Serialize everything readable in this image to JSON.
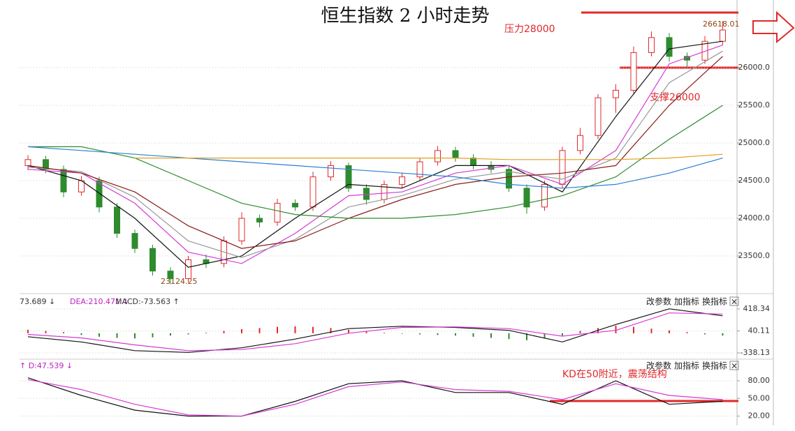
{
  "title": "恒生指数 2 小时走势",
  "annotations": {
    "resistance": "压力28000",
    "support": "支撑26000",
    "kd_note": "KD在50附近，震荡结构"
  },
  "buttons": [
    "改参数",
    "加指标",
    "换指标",
    "×"
  ],
  "chart_data": [
    {
      "type": "candlestick",
      "open": [
        24700,
        24780,
        24650,
        24350,
        24500,
        24150,
        23800,
        23600,
        23300,
        23200,
        23450,
        23400,
        23700,
        24000,
        23950,
        24200,
        24150,
        24550,
        24700,
        24400,
        24250,
        24450,
        24550,
        24750,
        24900,
        24800,
        24700,
        24650,
        24400,
        24150,
        24450,
        24900,
        25100,
        25600,
        25700,
        26200,
        26400,
        26150,
        26100,
        26350
      ],
      "high": [
        24840,
        24830,
        24700,
        24560,
        24550,
        24200,
        23850,
        23650,
        23350,
        23500,
        23520,
        23760,
        24080,
        24050,
        24260,
        24250,
        24620,
        24760,
        24740,
        24450,
        24500,
        24600,
        24800,
        24960,
        24950,
        24850,
        24760,
        24700,
        24450,
        24500,
        24950,
        25200,
        25650,
        25780,
        26280,
        26480,
        26460,
        26200,
        26420,
        26618.01
      ],
      "low": [
        24640,
        24600,
        24280,
        24300,
        24080,
        23740,
        23540,
        23240,
        23124.25,
        23150,
        23340,
        23350,
        23650,
        23880,
        23900,
        24100,
        24100,
        24500,
        24350,
        24180,
        24200,
        24400,
        24500,
        24700,
        24750,
        24650,
        24600,
        24350,
        24060,
        24100,
        24400,
        24850,
        25050,
        25400,
        25650,
        26150,
        26080,
        26000,
        26050,
        26300
      ],
      "close": [
        24780,
        24650,
        24350,
        24500,
        24150,
        23800,
        23600,
        23300,
        23200,
        23450,
        23400,
        23700,
        24000,
        23950,
        24200,
        24150,
        24550,
        24700,
        24400,
        24250,
        24450,
        24550,
        24750,
        24900,
        24800,
        24700,
        24650,
        24400,
        24150,
        24450,
        24900,
        25100,
        25600,
        25700,
        26200,
        26400,
        26150,
        26100,
        26350,
        26500
      ],
      "up_color": "#e0292b",
      "down_color": "#2e8b2e",
      "ma_x": [
        0,
        3,
        6,
        9,
        12,
        15,
        18,
        21,
        24,
        27,
        30,
        33,
        36,
        39
      ],
      "ma": [
        {
          "color": "#111111",
          "values": [
            24700,
            24500,
            24000,
            23350,
            23500,
            24000,
            24450,
            24400,
            24700,
            24700,
            24350,
            25350,
            26250,
            26350
          ]
        },
        {
          "color": "#d63ad6",
          "values": [
            24650,
            24600,
            24200,
            23550,
            23400,
            23800,
            24300,
            24350,
            24600,
            24700,
            24450,
            24900,
            26050,
            26300
          ]
        },
        {
          "color": "#999999",
          "values": [
            24680,
            24620,
            24280,
            23700,
            23480,
            23720,
            24150,
            24300,
            24520,
            24620,
            24520,
            24800,
            25800,
            26220
          ]
        },
        {
          "color": "#8b1a1a",
          "values": [
            24700,
            24600,
            24350,
            23900,
            23600,
            23700,
            24000,
            24250,
            24450,
            24550,
            24600,
            24700,
            25500,
            26150
          ]
        },
        {
          "color": "#2e8b2e",
          "values": [
            24950,
            24950,
            24800,
            24500,
            24200,
            24050,
            24000,
            24000,
            24050,
            24150,
            24300,
            24550,
            25050,
            25500
          ]
        },
        {
          "color": "#2a7fd4",
          "values": [
            24950,
            24900,
            24850,
            24800,
            24750,
            24700,
            24650,
            24600,
            24550,
            24450,
            24400,
            24450,
            24600,
            24800
          ]
        },
        {
          "color": "#e0a020",
          "values": [
            null,
            null,
            24800,
            24800,
            24800,
            24800,
            24800,
            24800,
            24800,
            24780,
            24780,
            24780,
            24800,
            24850
          ]
        }
      ],
      "ylim": [
        23056,
        26852
      ],
      "yticks": [
        {
          "value": 23500,
          "label": "23500.0"
        },
        {
          "value": 24000,
          "label": "24000.0"
        },
        {
          "value": 24500,
          "label": "24500.0"
        },
        {
          "value": 25000,
          "label": "25000.0"
        },
        {
          "value": 25500,
          "label": "25500.0"
        },
        {
          "value": 26000,
          "label": "26000.0"
        }
      ]
    },
    {
      "type": "macd",
      "header": [
        "73.689 ↓",
        "DEA:210.471 ↓",
        "MACD:-73.563 ↑"
      ],
      "hist": [
        60,
        40,
        20,
        -30,
        -60,
        -80,
        -90,
        -70,
        -40,
        -20,
        10,
        40,
        70,
        90,
        110,
        120,
        110,
        90,
        60,
        30,
        10,
        -10,
        -20,
        -30,
        -40,
        -60,
        -80,
        -100,
        -120,
        -90,
        -40,
        40,
        90,
        130,
        110,
        80,
        50,
        20,
        -20,
        -40
      ],
      "x": [
        0,
        3,
        6,
        9,
        12,
        15,
        18,
        21,
        24,
        27,
        30,
        33,
        36,
        39
      ],
      "series": [
        {
          "color": "#111111",
          "values": [
            -60,
            -150,
            -300,
            -330,
            -250,
            -100,
            80,
            120,
            100,
            50,
            -150,
            150,
            420,
            300
          ]
        },
        {
          "color": "#d63ad6",
          "values": [
            -20,
            -80,
            -200,
            -300,
            -280,
            -180,
            0,
            100,
            110,
            80,
            -50,
            50,
            350,
            330
          ]
        }
      ],
      "up_color": "#e0292b",
      "down_color": "#2e8b2e",
      "ylim": [
        -446,
        574
      ],
      "yticks": [
        {
          "value": -338.13,
          "label": "-338.13"
        },
        40.11,
        418.34
      ]
    },
    {
      "type": "kd",
      "header": [
        "↑ D:47.539 ↓"
      ],
      "x": [
        0,
        3,
        6,
        9,
        12,
        15,
        18,
        21,
        24,
        27,
        30,
        33,
        36,
        39
      ],
      "series": [
        {
          "color": "#111111",
          "values": [
            85,
            55,
            30,
            20,
            20,
            45,
            75,
            80,
            60,
            60,
            40,
            80,
            40,
            45
          ]
        },
        {
          "color": "#d63ad6",
          "values": [
            82,
            65,
            40,
            22,
            20,
            40,
            70,
            78,
            65,
            62,
            48,
            75,
            55,
            48
          ]
        }
      ],
      "ylim": [
        10,
        93
      ],
      "yticks": [
        {
          "value": 20,
          "label": "20.00"
        },
        {
          "value": 50,
          "label": "50.00"
        },
        {
          "value": 80,
          "label": "80.00"
        }
      ]
    }
  ]
}
